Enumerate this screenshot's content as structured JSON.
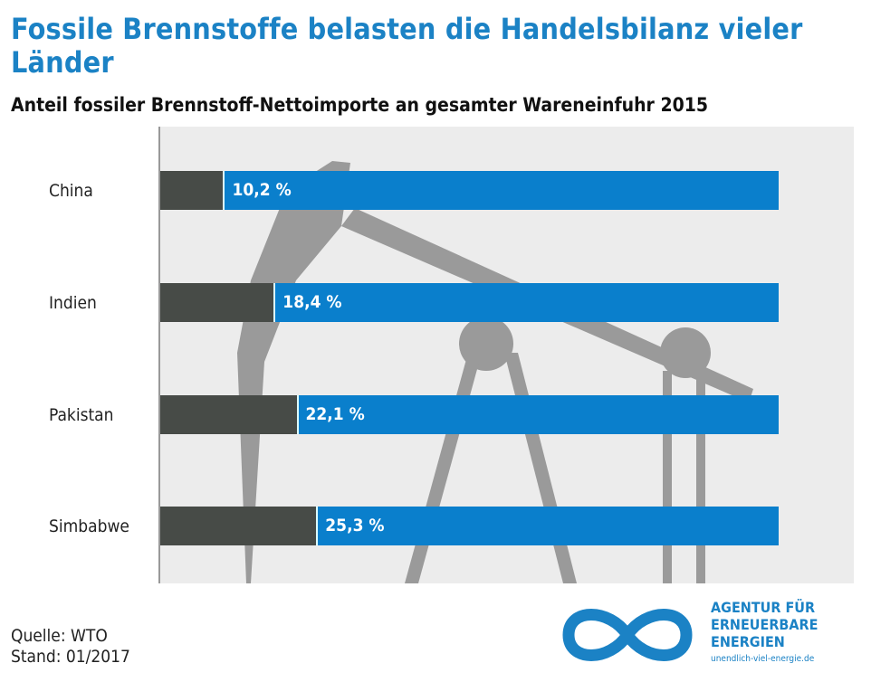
{
  "chart_data": {
    "type": "bar",
    "title": "Fossile Brennstoffe belasten die Handelsbilanz vieler Länder",
    "subtitle": "Anteil fossiler Brennstoff-Nettoimporte an gesamter Wareneinfuhr 2015",
    "categories": [
      "China",
      "Indien",
      "Pakistan",
      "Simbabwe"
    ],
    "values": [
      10.2,
      18.4,
      22.1,
      25.3
    ],
    "labels": [
      "10,2 %",
      "18,4 %",
      "22,1 %",
      "25,3 %"
    ],
    "xlim": [
      0,
      100
    ],
    "colors": {
      "share": "#474b47",
      "total": "#0a7fcc"
    }
  },
  "footer": {
    "source": "Quelle: WTO",
    "date": "Stand: 01/2017"
  },
  "logo": {
    "line1": "AGENTUR FÜR",
    "line2": "ERNEUERBARE",
    "line3": "ENERGIEN",
    "url": "unendlich-viel-energie.de"
  }
}
